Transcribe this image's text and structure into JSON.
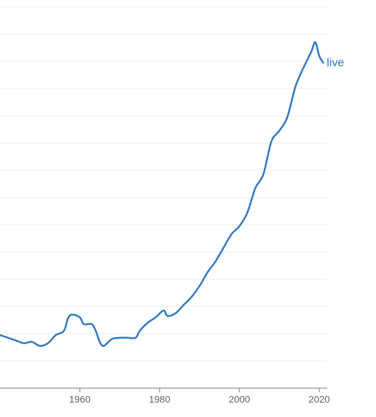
{
  "chart_data": {
    "type": "line",
    "xlim": [
      1940,
      2022
    ],
    "ylim": [
      0,
      14
    ],
    "grid": true,
    "x_ticks": [
      1960,
      1980,
      2000,
      2020
    ],
    "x_tick_labels": [
      "1960",
      "1980",
      "2000",
      "2020"
    ],
    "series": [
      {
        "name": "live",
        "color": "#2f77c4",
        "points": [
          [
            1940,
            1.95
          ],
          [
            1942,
            1.85
          ],
          [
            1944,
            1.75
          ],
          [
            1946,
            1.65
          ],
          [
            1948,
            1.7
          ],
          [
            1950,
            1.55
          ],
          [
            1952,
            1.65
          ],
          [
            1954,
            1.95
          ],
          [
            1956,
            2.1
          ],
          [
            1957,
            2.55
          ],
          [
            1958,
            2.7
          ],
          [
            1960,
            2.6
          ],
          [
            1961,
            2.35
          ],
          [
            1963,
            2.35
          ],
          [
            1964,
            2.1
          ],
          [
            1965,
            1.7
          ],
          [
            1966,
            1.55
          ],
          [
            1968,
            1.8
          ],
          [
            1970,
            1.85
          ],
          [
            1972,
            1.85
          ],
          [
            1974,
            1.85
          ],
          [
            1975,
            2.1
          ],
          [
            1977,
            2.4
          ],
          [
            1979,
            2.6
          ],
          [
            1981,
            2.85
          ],
          [
            1982,
            2.65
          ],
          [
            1984,
            2.75
          ],
          [
            1986,
            3.05
          ],
          [
            1988,
            3.35
          ],
          [
            1990,
            3.75
          ],
          [
            1992,
            4.25
          ],
          [
            1994,
            4.65
          ],
          [
            1996,
            5.15
          ],
          [
            1998,
            5.65
          ],
          [
            2000,
            5.95
          ],
          [
            2002,
            6.45
          ],
          [
            2004,
            7.35
          ],
          [
            2006,
            7.85
          ],
          [
            2008,
            9.05
          ],
          [
            2010,
            9.45
          ],
          [
            2012,
            9.95
          ],
          [
            2014,
            11.05
          ],
          [
            2016,
            11.75
          ],
          [
            2018,
            12.35
          ],
          [
            2019,
            12.7
          ],
          [
            2020,
            12.2
          ],
          [
            2021,
            11.95
          ]
        ]
      }
    ]
  }
}
